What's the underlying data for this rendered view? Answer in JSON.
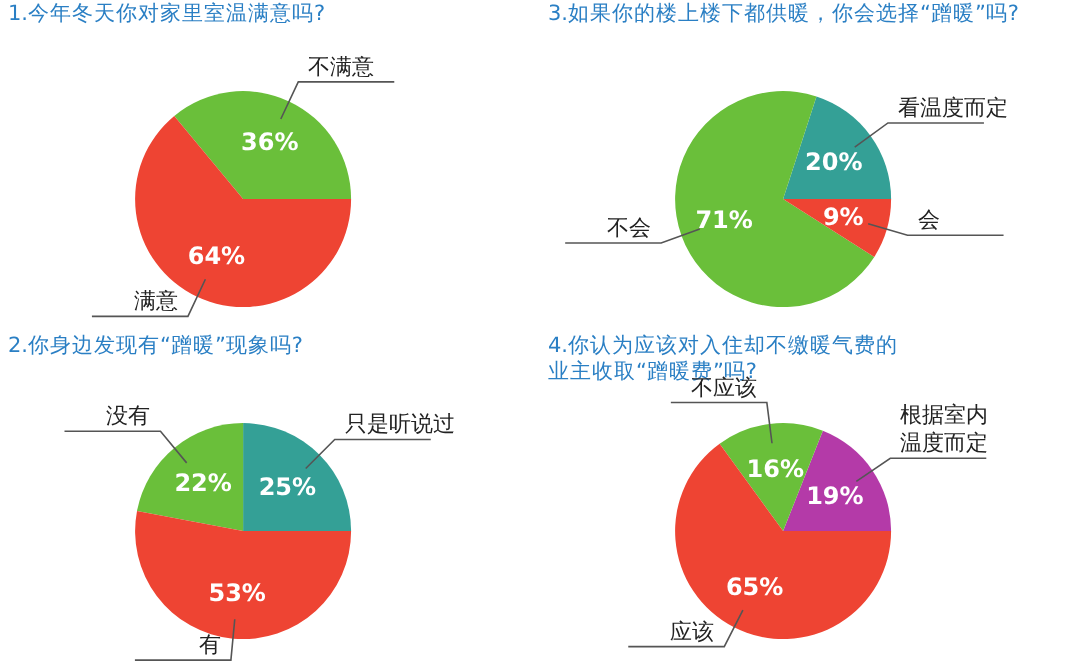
{
  "chart_data": [
    {
      "type": "pie",
      "title": "1.今年冬天你对家里室温满意吗?",
      "categories": [
        "不满意",
        "满意"
      ],
      "values": [
        36,
        64
      ],
      "colors": [
        "#6abf3a",
        "#ee4433"
      ],
      "value_labels": [
        "36%",
        "64%"
      ]
    },
    {
      "type": "pie",
      "title": "3.如果你的楼上楼下都供暖，你会选择“蹭暖”吗?",
      "categories": [
        "看温度而定",
        "不会",
        "会"
      ],
      "values": [
        20,
        71,
        9
      ],
      "colors": [
        "#34a096",
        "#6abf3a",
        "#ee4433"
      ],
      "value_labels": [
        "20%",
        "71%",
        "9%"
      ]
    },
    {
      "type": "pie",
      "title": "2.你身边发现有“蹭暖”现象吗?",
      "categories": [
        "只是听说过",
        "没有",
        "有"
      ],
      "values": [
        25,
        22,
        53
      ],
      "colors": [
        "#34a096",
        "#6abf3a",
        "#ee4433"
      ],
      "value_labels": [
        "25%",
        "22%",
        "53%"
      ]
    },
    {
      "type": "pie",
      "title": "4.你认为应该对入住却不缴暖气费的业主收取“蹭暖费”吗?",
      "categories": [
        "根据室内温度而定",
        "不应该",
        "应该"
      ],
      "values": [
        19,
        16,
        65
      ],
      "colors": [
        "#b43aa8",
        "#6abf3a",
        "#ee4433"
      ],
      "value_labels": [
        "19%",
        "16%",
        "65%"
      ]
    }
  ]
}
